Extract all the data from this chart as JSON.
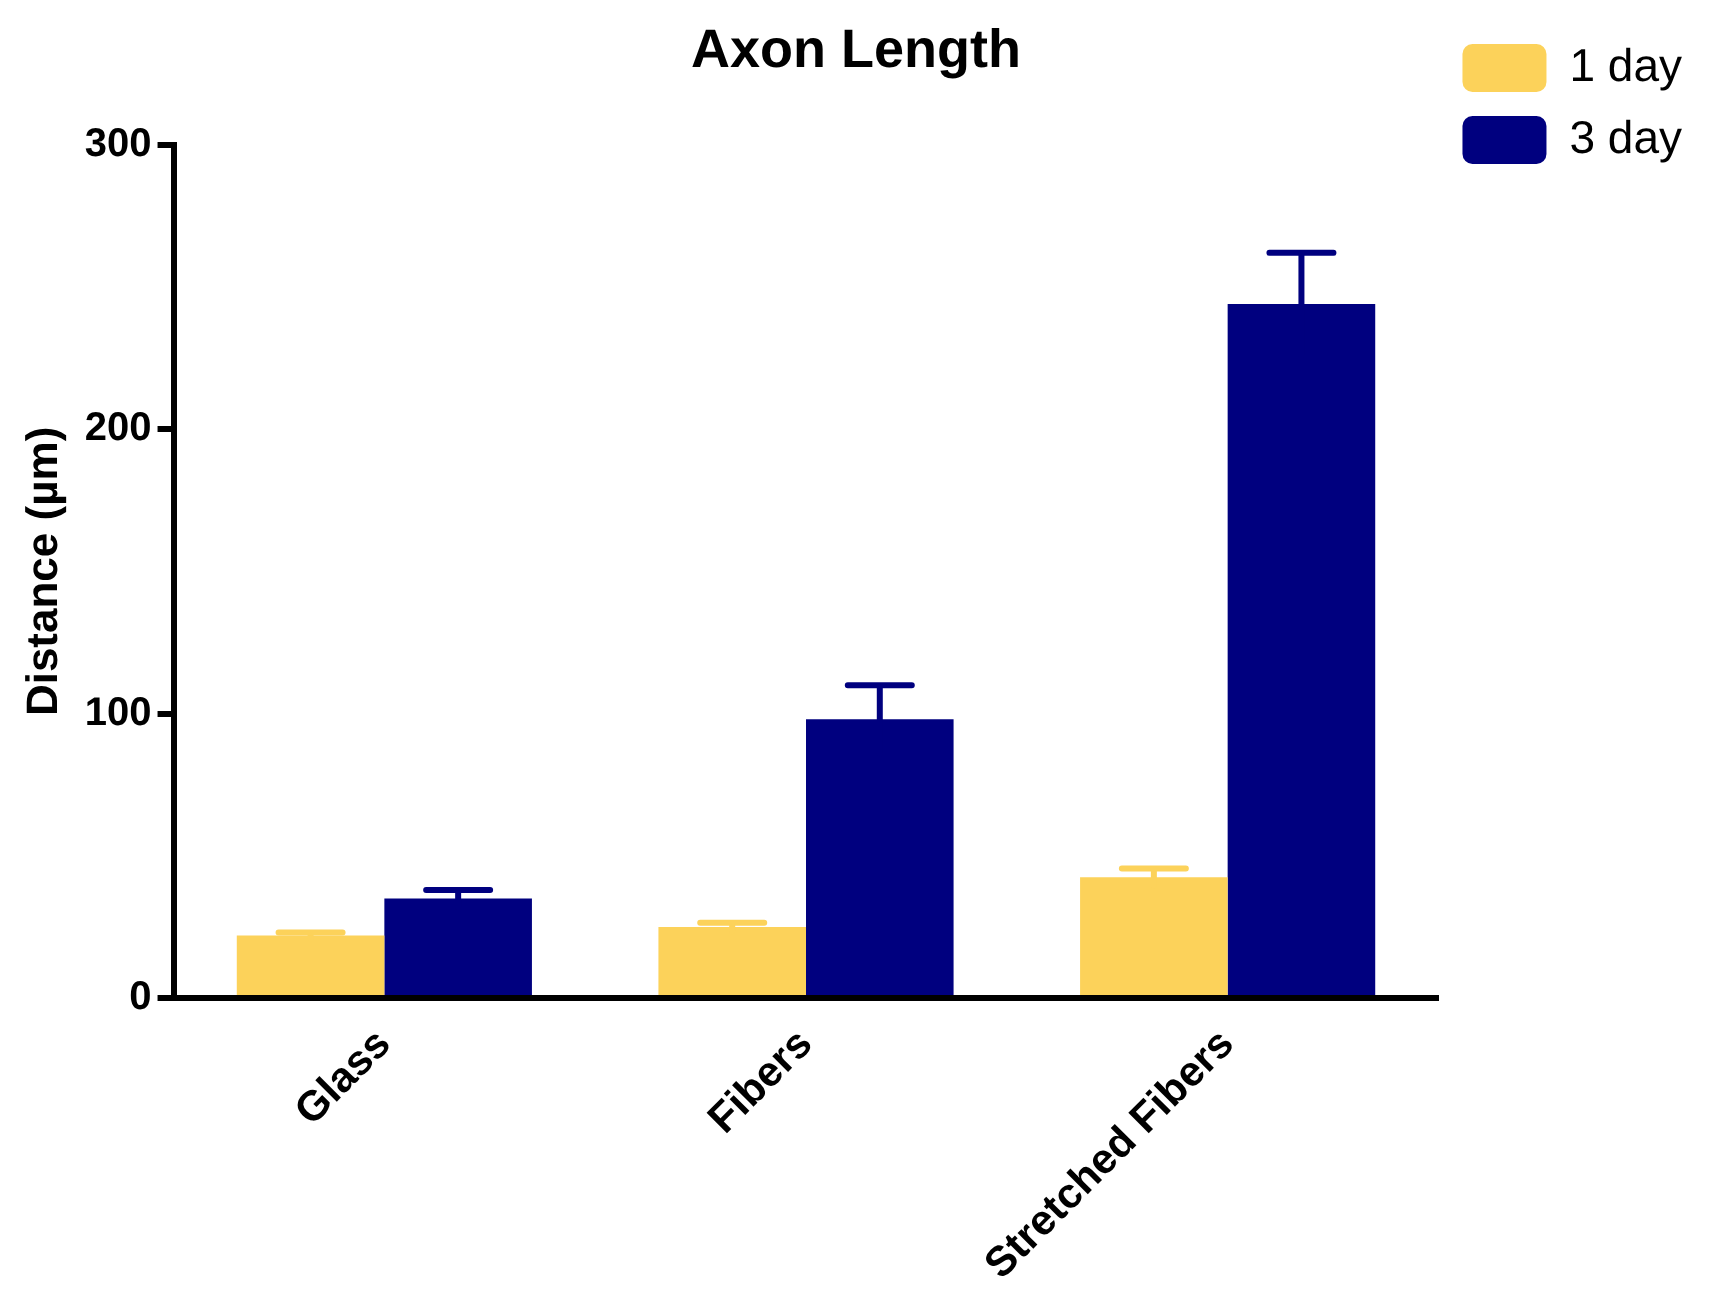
{
  "chart_data": {
    "type": "bar",
    "title": "Axon Length",
    "ylabel": "Distance (µm)",
    "categories": [
      "Glass",
      "Fibers",
      "Stretched Fibers"
    ],
    "series": [
      {
        "name": "1 day",
        "color": "#fcd25a",
        "values": [
          22,
          25,
          42.5
        ],
        "errors": [
          1,
          1.5,
          3
        ]
      },
      {
        "name": "3 day",
        "color": "#00007f",
        "values": [
          35,
          98,
          244
        ],
        "errors": [
          3,
          12,
          18
        ]
      }
    ],
    "ylim": [
      0,
      300
    ],
    "yticks": [
      0,
      100,
      200,
      300
    ],
    "grid": false,
    "legend": "top right"
  }
}
